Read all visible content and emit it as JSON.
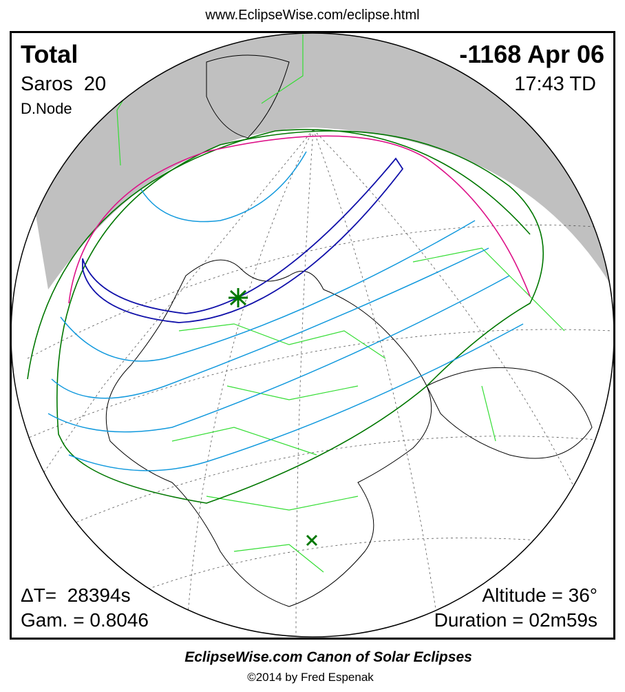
{
  "header": {
    "url": "www.EclipseWise.com/eclipse.html"
  },
  "map": {
    "eclipse_type": "Total",
    "date": "-1168 Apr 06",
    "saros": "Saros  20",
    "time": "17:43 TD",
    "node": "D.Node",
    "delta_t": "ΔT=  28394s",
    "gamma": "Gam. = 0.8046",
    "altitude": "Altitude = 36°",
    "duration": "Duration = 02m59s"
  },
  "footer": {
    "title": "EclipseWise.com Canon of Solar Eclipses",
    "copyright": "©2014 by Fred Espenak"
  }
}
